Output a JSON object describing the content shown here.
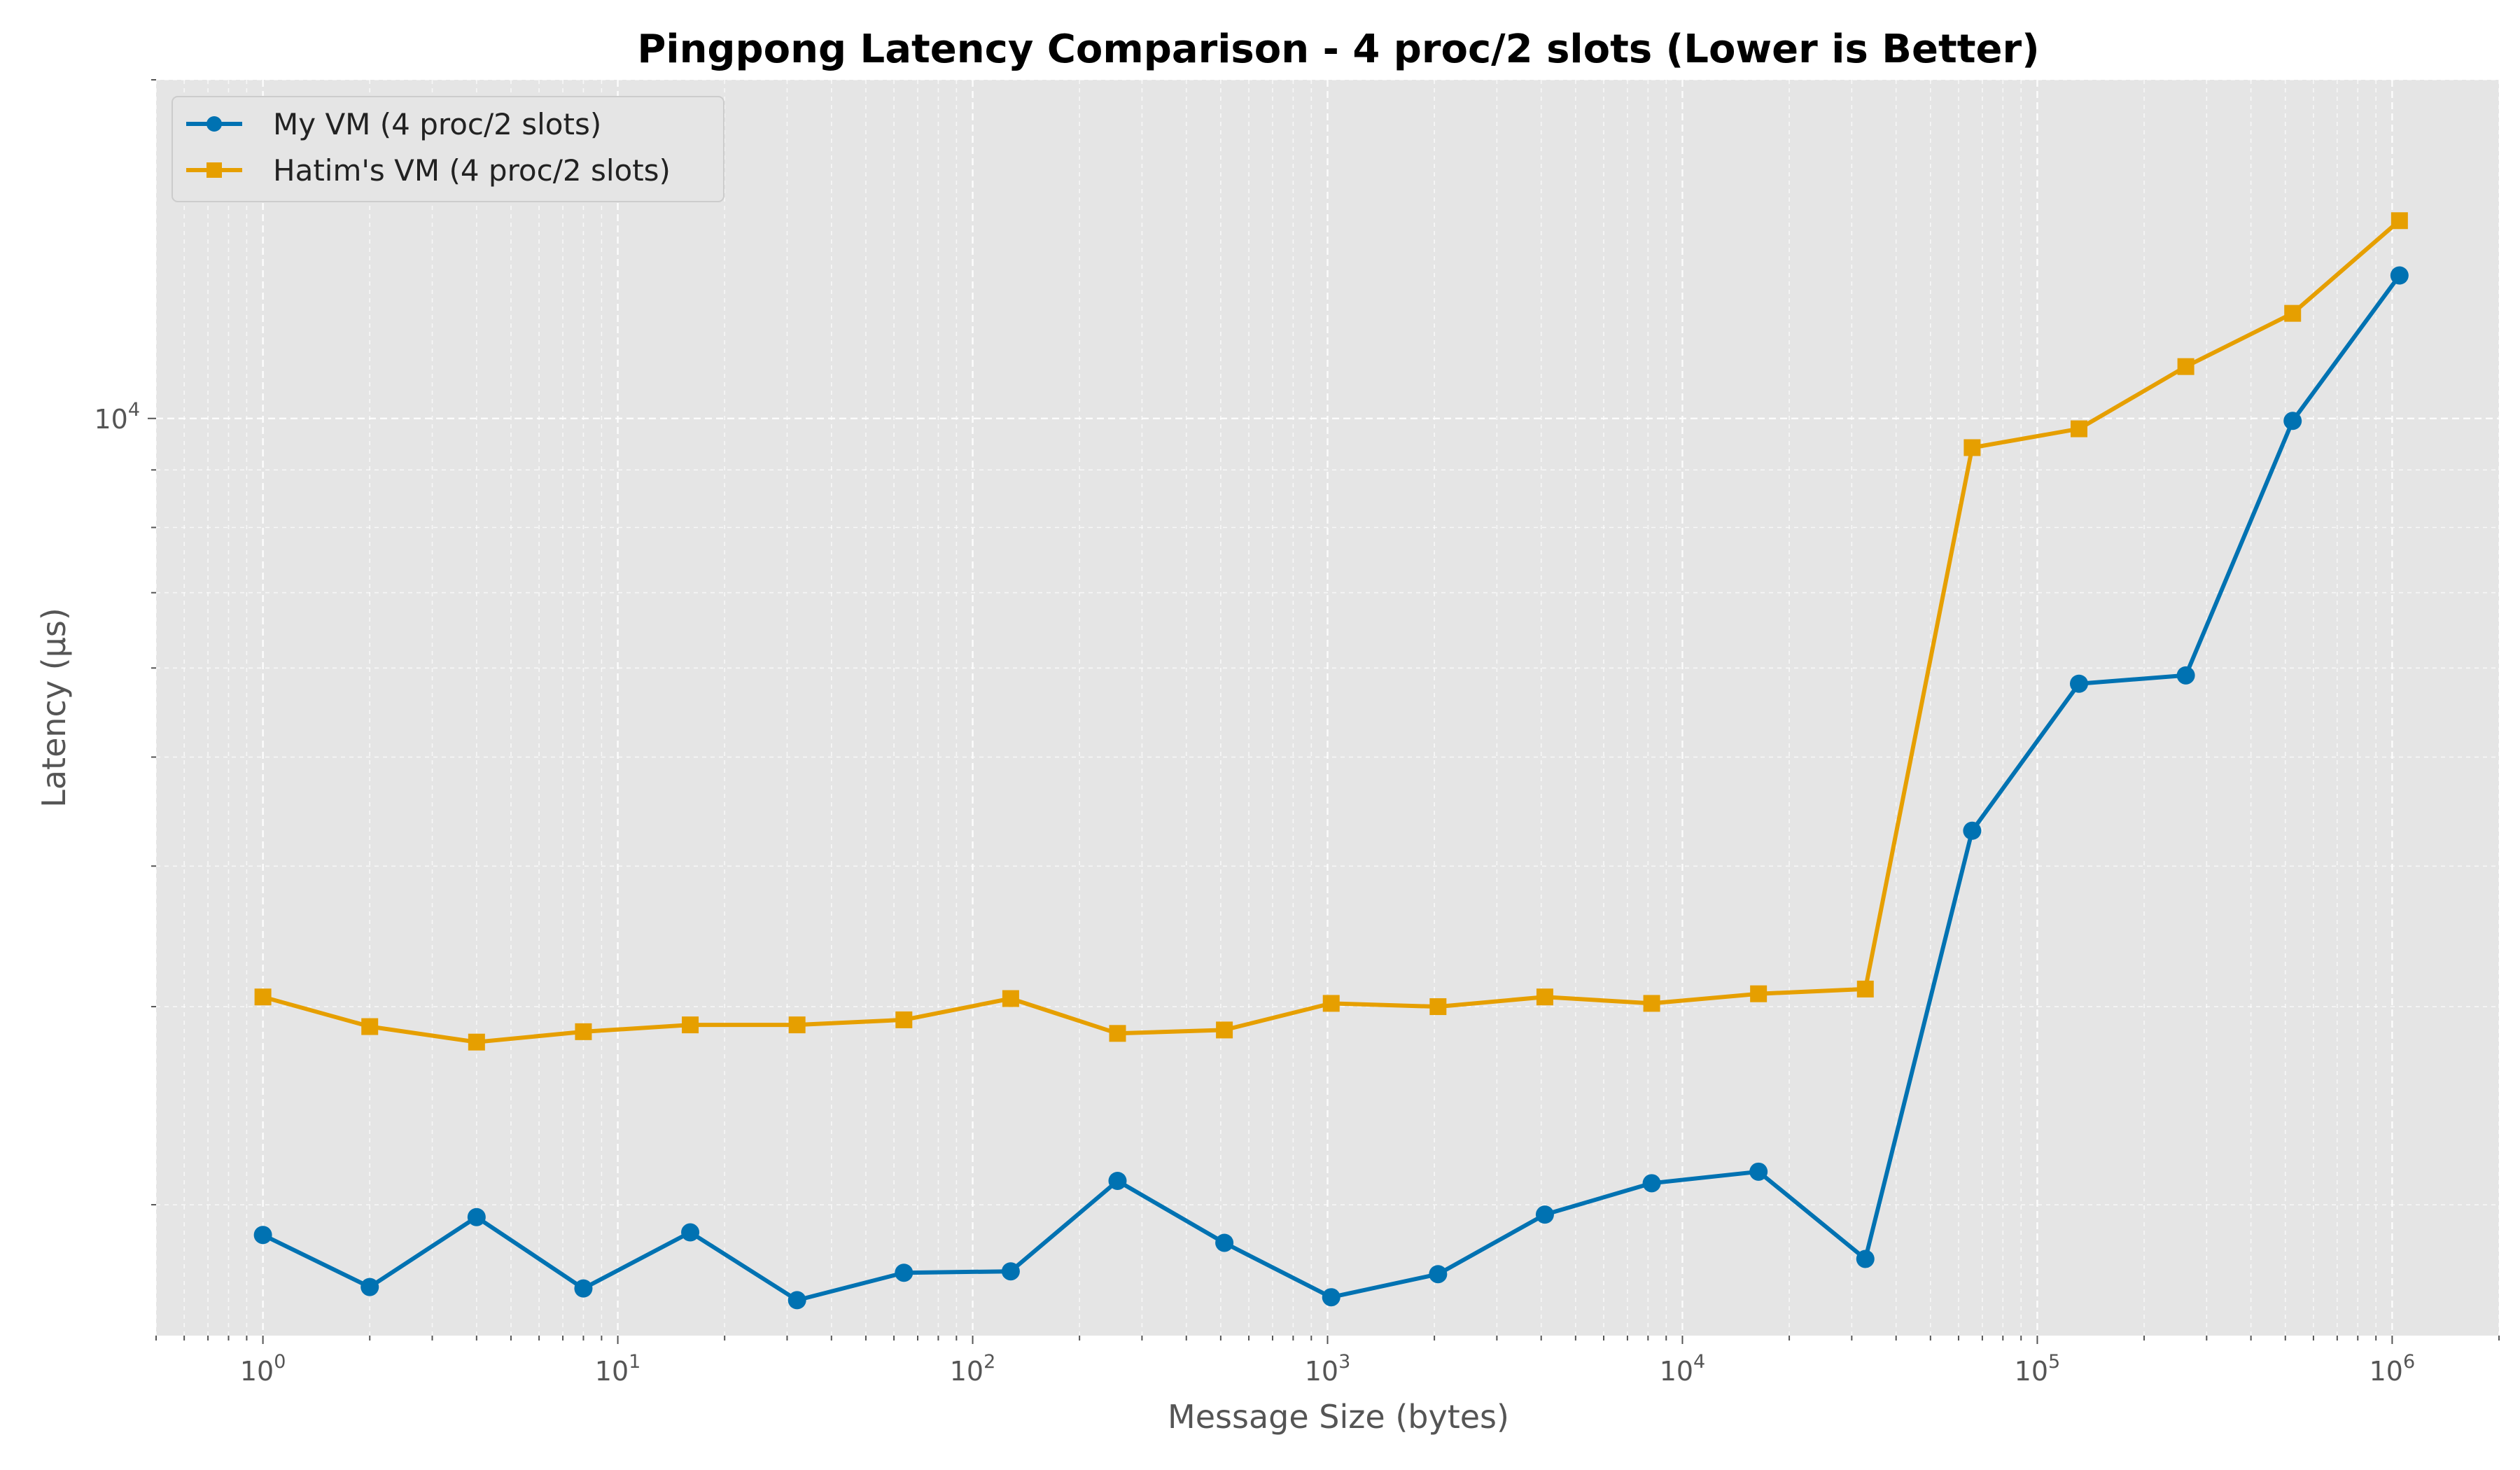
{
  "chart_data": {
    "type": "line",
    "title": "Pingpong Latency Comparison - 4 proc/2 slots (Lower is Better)",
    "xlabel": "Message Size (bytes)",
    "ylabel": "Latency (µs)",
    "xscale": "log",
    "yscale": "log",
    "xlim": [
      0.5,
      2000000
    ],
    "ylim": [
      1530,
      20000
    ],
    "grid": true,
    "legend_position": "top-left",
    "x_ticks": [
      {
        "base": "10",
        "exp": "0"
      },
      {
        "base": "10",
        "exp": "1"
      },
      {
        "base": "10",
        "exp": "2"
      },
      {
        "base": "10",
        "exp": "3"
      },
      {
        "base": "10",
        "exp": "4"
      },
      {
        "base": "10",
        "exp": "5"
      },
      {
        "base": "10",
        "exp": "6"
      }
    ],
    "y_ticks": [
      {
        "base": "10",
        "exp": "4"
      }
    ],
    "x": [
      1,
      2,
      4,
      8,
      16,
      32,
      64,
      128,
      256,
      512,
      1024,
      2048,
      4096,
      8192,
      16384,
      32768,
      65536,
      131072,
      262144,
      524288,
      1048576
    ],
    "series": [
      {
        "name": "My VM (4 proc/2 slots)",
        "color": "#0072B2",
        "marker": "circle",
        "values": [
          1880,
          1690,
          1950,
          1685,
          1890,
          1645,
          1740,
          1745,
          2100,
          1850,
          1655,
          1735,
          1960,
          2090,
          2140,
          1790,
          4300,
          5810,
          5910,
          9950,
          13400
        ]
      },
      {
        "name": "Hatim's VM (4 proc/2 slots)",
        "color": "#E69F00",
        "marker": "square",
        "values": [
          3060,
          2880,
          2790,
          2850,
          2890,
          2890,
          2920,
          3050,
          2840,
          2860,
          3020,
          3000,
          3060,
          3020,
          3080,
          3110,
          9420,
          9790,
          11120,
          12400,
          14990
        ]
      }
    ]
  }
}
